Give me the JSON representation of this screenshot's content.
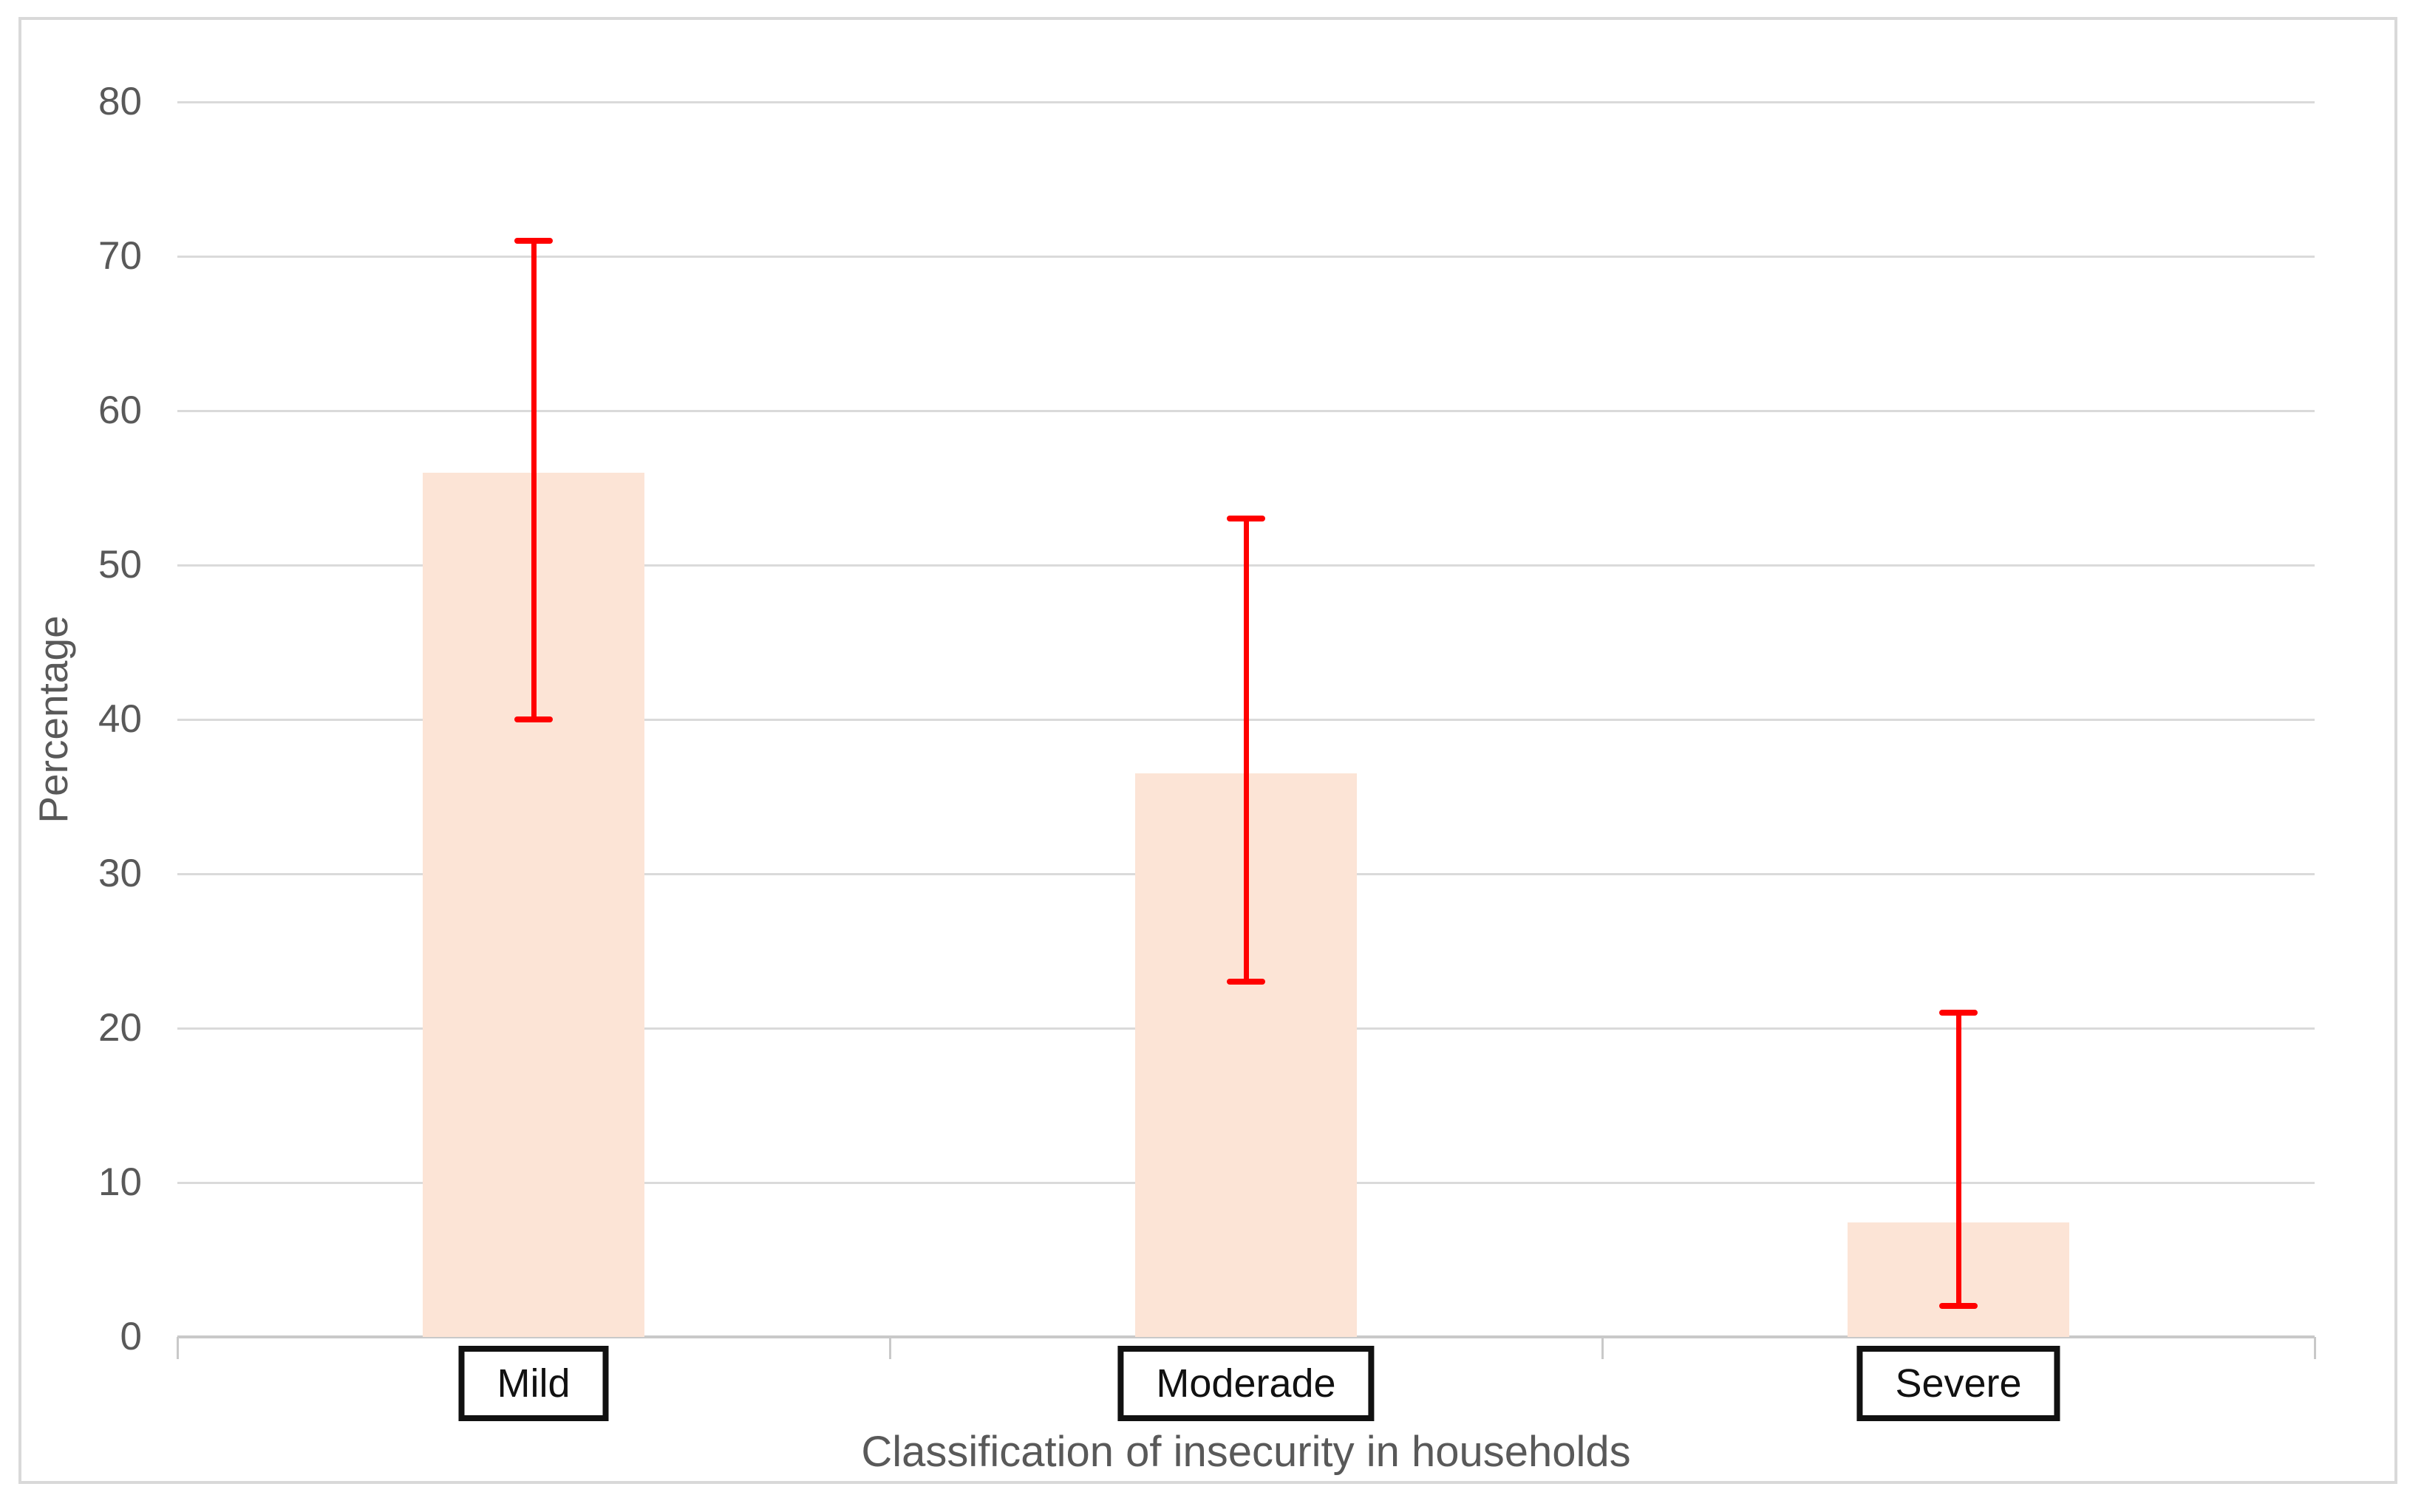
{
  "chart_data": {
    "type": "bar",
    "title": "",
    "xlabel": "Classification of insecurity in households",
    "ylabel": "Percentage",
    "categories": [
      "Mild",
      "Moderade",
      "Severe"
    ],
    "series": [
      {
        "name": "Percentage",
        "values": [
          56,
          36.5,
          7.4
        ]
      }
    ],
    "error_bars": {
      "low": [
        40,
        23,
        2
      ],
      "high": [
        71,
        53,
        21
      ]
    },
    "ylim": [
      0,
      80
    ],
    "yticks": [
      0,
      10,
      20,
      30,
      40,
      50,
      60,
      70,
      80
    ],
    "grid": true,
    "legend": false,
    "layout_hints": {
      "gridlines": "horizontal only",
      "category_labels_in_boxes": true,
      "error_bar_style": "capped"
    },
    "colors": {
      "bar_fill": "#fce4d6",
      "error_bar": "#ff0000",
      "gridline": "#dadada",
      "axis_line": "#c9c9c9",
      "frame_border": "#d9d9d9",
      "tick_text": "#595959",
      "axis_title_text": "#595959",
      "category_text": "#111111",
      "category_box_border": "#111111",
      "background": "#ffffff"
    }
  }
}
